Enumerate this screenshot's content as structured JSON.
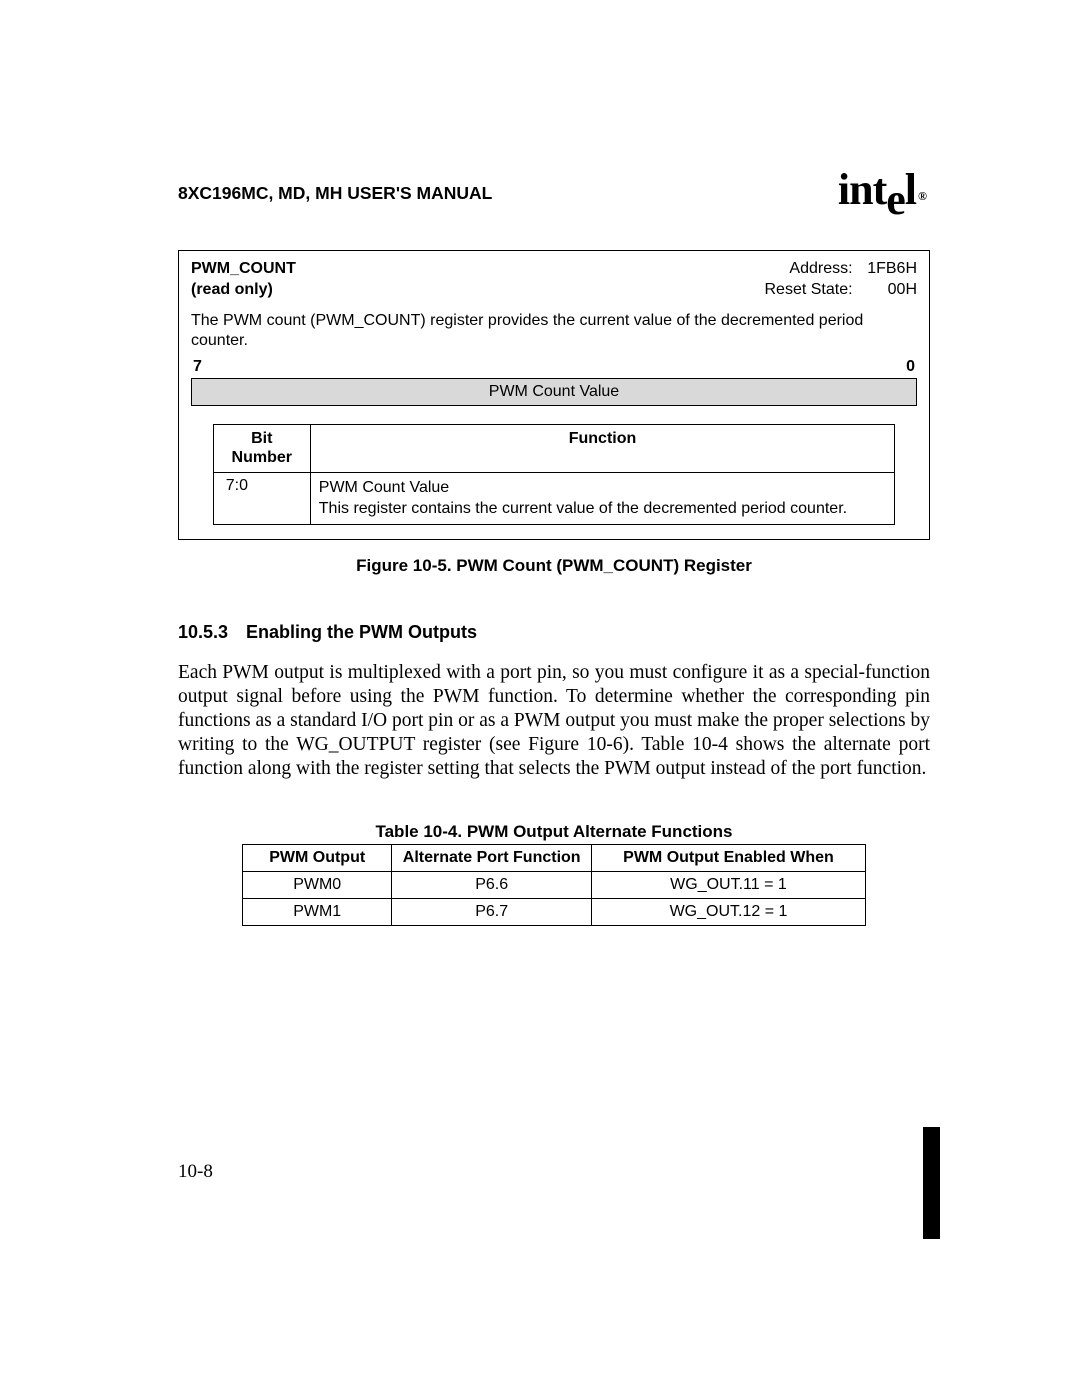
{
  "header": {
    "title": "8XC196MC, MD, MH USER'S MANUAL",
    "logo_text_1": "int",
    "logo_text_2": "e",
    "logo_text_3": "l",
    "logo_reg": "®"
  },
  "register_box": {
    "name": "PWM_COUNT",
    "access": "(read only)",
    "addr_label": "Address:",
    "addr_value": "1FB6H",
    "reset_label": "Reset State:",
    "reset_value": "00H",
    "description": "The PWM count (PWM_COUNT) register provides the current value of the decremented period counter.",
    "bit_hi": "7",
    "bit_lo": "0",
    "field_label": "PWM Count Value",
    "bit_table": {
      "col_bitnum": "Bit\nNumber",
      "col_function": "Function",
      "row": {
        "bitnum": "7:0",
        "title": "PWM Count Value",
        "desc": "This register contains the current value of the decremented period counter."
      }
    }
  },
  "figure_caption": "Figure 10-5.  PWM Count (PWM_COUNT) Register",
  "section": {
    "number": "10.5.3",
    "title": "Enabling the PWM Outputs"
  },
  "paragraph": "Each PWM output is multiplexed with a port pin, so you must configure it as a special-function output signal before using the PWM function. To determine whether the corresponding pin functions as a standard I/O port pin or as a PWM output you must make the proper selections by writing to the WG_OUTPUT register (see Figure 10-6). Table 10-4 shows the alternate port function along with the register setting that selects the PWM output instead of the port function.",
  "table": {
    "caption": "Table 10-4.  PWM Output Alternate Functions",
    "headers": {
      "c1": "PWM Output",
      "c2": "Alternate Port Function",
      "c3": "PWM Output Enabled When"
    },
    "rows": [
      {
        "c1": "PWM0",
        "c2": "P6.6",
        "c3": "WG_OUT.11 = 1"
      },
      {
        "c1": "PWM1",
        "c2": "P6.7",
        "c3": "WG_OUT.12 = 1"
      }
    ]
  },
  "page_number": "10-8"
}
